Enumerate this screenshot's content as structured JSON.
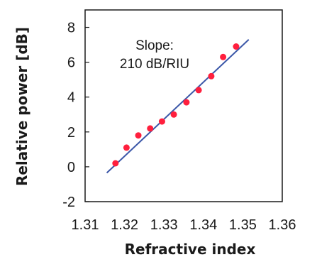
{
  "chart_data": {
    "type": "scatter",
    "xlabel": "Refractive index",
    "ylabel": "Relative power [dB]",
    "xlim": [
      1.31,
      1.36
    ],
    "ylim": [
      -2,
      9
    ],
    "x_ticks": [
      "1.31",
      "1.32",
      "1.33",
      "1.34",
      "1.35",
      "1.36"
    ],
    "y_ticks": [
      "-2",
      "0",
      "2",
      "4",
      "6",
      "8"
    ],
    "annotation": {
      "line1": "Slope:",
      "line2": "210 dB/RIU"
    },
    "series": [
      {
        "type": "scatter",
        "color": "#ff1f3d",
        "x": [
          1.3177,
          1.3205,
          1.3235,
          1.3265,
          1.3295,
          1.3325,
          1.3357,
          1.3388,
          1.342,
          1.345,
          1.3483
        ],
        "y": [
          0.2,
          1.1,
          1.8,
          2.2,
          2.6,
          3.0,
          3.7,
          4.4,
          5.2,
          6.3,
          6.9
        ]
      },
      {
        "type": "line",
        "color": "#3b57a8",
        "x": [
          1.3155,
          1.3515
        ],
        "y": [
          -0.35,
          7.3
        ]
      }
    ],
    "grid": false,
    "legend": "none"
  }
}
